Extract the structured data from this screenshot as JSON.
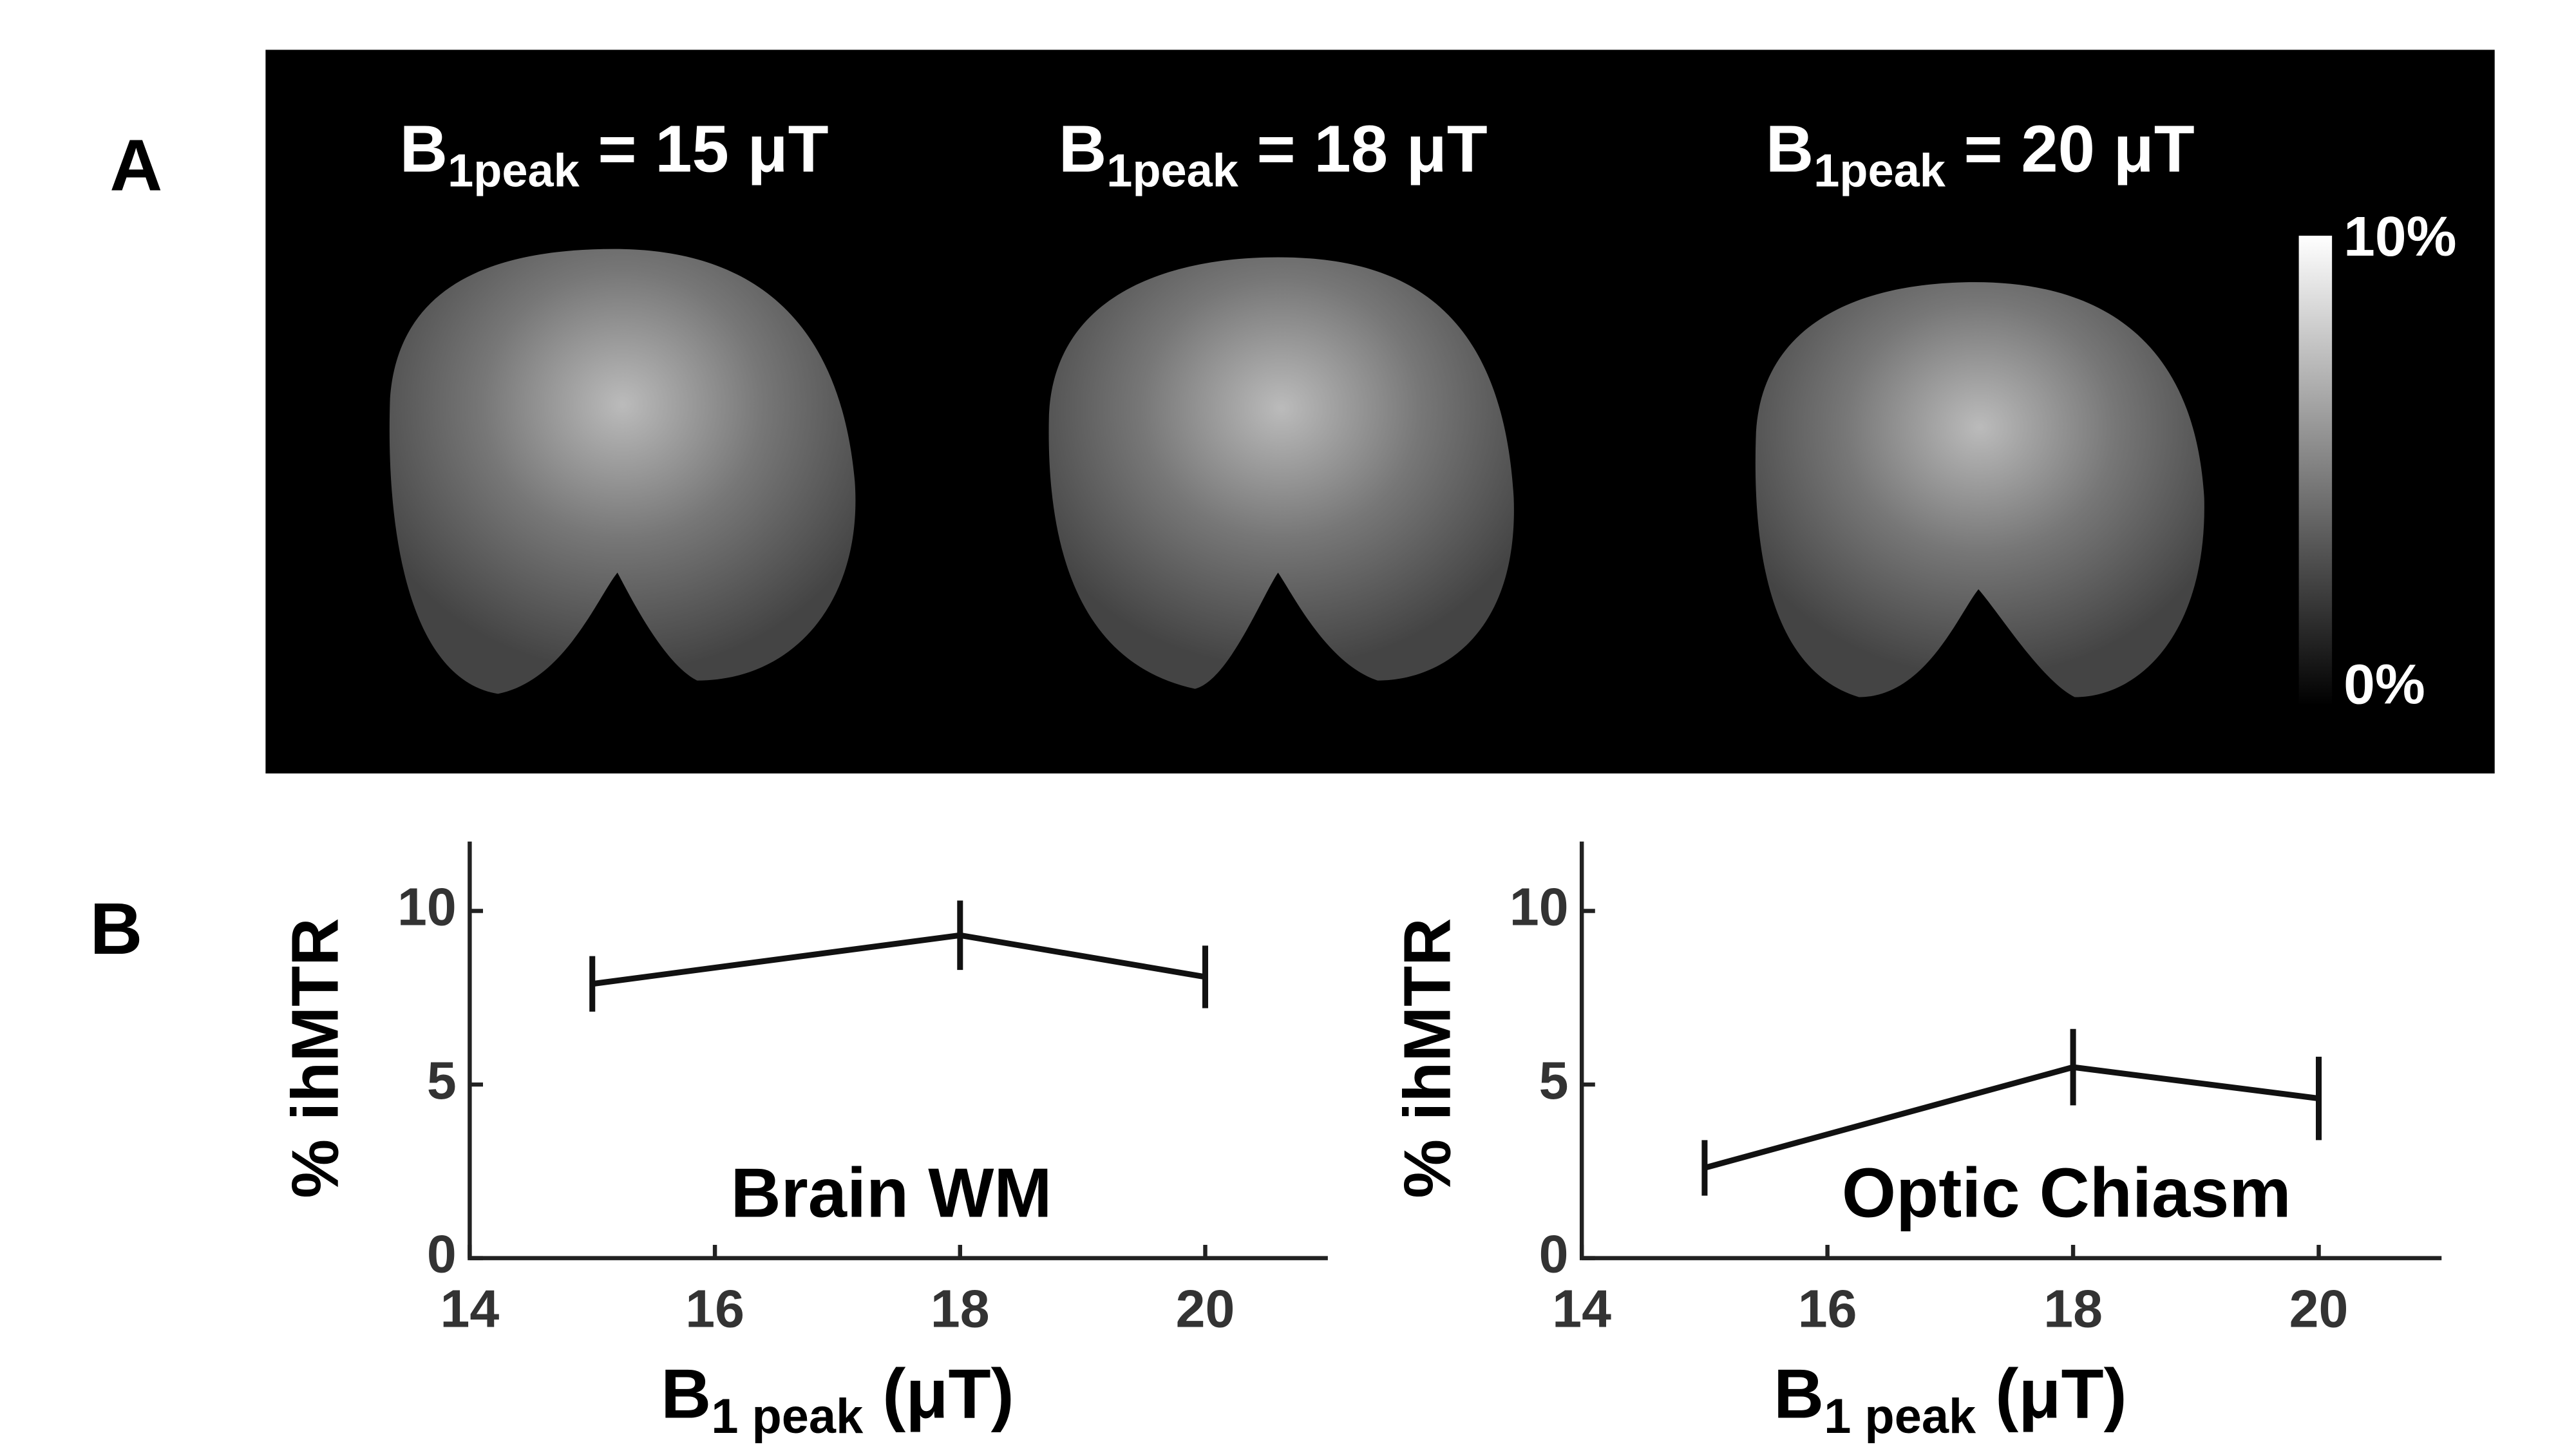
{
  "panel_labels": {
    "a": "A",
    "b": "B"
  },
  "panel_a": {
    "titles": [
      {
        "base": "B",
        "sub": "1peak",
        "rest": " = 15 μT"
      },
      {
        "base": "B",
        "sub": "1peak",
        "rest": " = 18 μT"
      },
      {
        "base": "B",
        "sub": "1peak",
        "rest": " = 20 μT"
      }
    ],
    "colorbar": {
      "max_label": "10%",
      "min_label": "0%"
    }
  },
  "chart_data": [
    {
      "type": "line",
      "annotation": "Brain WM",
      "ylabel": "% ihMTR",
      "xlabel": {
        "base": "B",
        "sub": "1 peak",
        "rest": " (μT)"
      },
      "x": [
        15,
        18,
        20
      ],
      "series": [
        {
          "color": "#111111",
          "values": [
            7.9,
            9.3,
            8.1
          ],
          "errors": [
            0.8,
            1.0,
            0.9
          ]
        }
      ],
      "xlim": [
        14,
        21
      ],
      "xticks": [
        14,
        16,
        18,
        20
      ],
      "ylim": [
        0,
        12
      ],
      "yticks": [
        0,
        5,
        10
      ]
    },
    {
      "type": "line",
      "annotation": "Optic Chiasm",
      "ylabel": "% ihMTR",
      "xlabel": {
        "base": "B",
        "sub": "1 peak",
        "rest": " (μT)"
      },
      "x": [
        15,
        18,
        20
      ],
      "series": [
        {
          "color": "#111111",
          "values": [
            2.6,
            5.5,
            4.6
          ],
          "errors": [
            0.8,
            1.1,
            1.2
          ]
        }
      ],
      "xlim": [
        14,
        21
      ],
      "xticks": [
        14,
        16,
        18,
        20
      ],
      "ylim": [
        0,
        12
      ],
      "yticks": [
        0,
        5,
        10
      ]
    }
  ]
}
